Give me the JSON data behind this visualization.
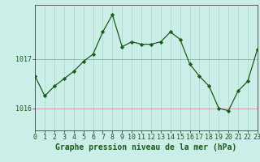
{
  "x": [
    0,
    1,
    2,
    3,
    4,
    5,
    6,
    7,
    8,
    9,
    10,
    11,
    12,
    13,
    14,
    15,
    16,
    17,
    18,
    19,
    20,
    21,
    22,
    23
  ],
  "y": [
    1016.65,
    1016.25,
    1016.45,
    1016.6,
    1016.75,
    1016.95,
    1017.1,
    1017.55,
    1017.9,
    1017.25,
    1017.35,
    1017.3,
    1017.3,
    1017.35,
    1017.55,
    1017.4,
    1016.9,
    1016.65,
    1016.45,
    1016.0,
    1015.95,
    1016.35,
    1016.55,
    1017.2
  ],
  "line_color": "#1a5c1a",
  "marker_color": "#1a5c1a",
  "bg_color": "#cceee8",
  "grid_color_v": "#aaddcc",
  "grid_color_h": "#cc9999",
  "ylabel_ticks": [
    1016,
    1017
  ],
  "xlabel_label": "Graphe pression niveau de la mer (hPa)",
  "ylim_min": 1015.55,
  "ylim_max": 1018.1,
  "xlim_min": 0,
  "xlim_max": 23,
  "tick_fontsize": 6.0,
  "label_fontsize": 7.0
}
